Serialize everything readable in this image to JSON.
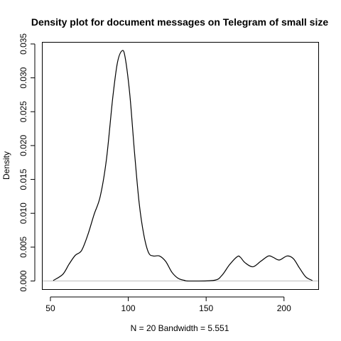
{
  "chart_data": {
    "type": "line",
    "title": "Density plot for document messages on Telegram of small size",
    "xlabel": "N = 20   Bandwidth = 5.551",
    "ylabel": "Density",
    "xlim": [
      45,
      222
    ],
    "ylim": [
      -0.0012,
      0.0352
    ],
    "x_ticks": [
      50,
      100,
      150,
      200
    ],
    "x_tick_labels": [
      "50",
      "100",
      "150",
      "200"
    ],
    "y_ticks": [
      0.0,
      0.005,
      0.01,
      0.015,
      0.02,
      0.025,
      0.03,
      0.035
    ],
    "y_tick_labels": [
      "0.000",
      "0.005",
      "0.010",
      "0.015",
      "0.020",
      "0.025",
      "0.030",
      "0.035"
    ],
    "grid": false,
    "baseline": {
      "y": 0,
      "color": "#bebebe"
    },
    "line_color": "#000000",
    "series": [
      {
        "x": [
          52,
          58,
          62,
          66,
          70,
          74,
          78,
          82,
          86,
          90,
          93,
          96,
          98,
          101,
          104,
          107,
          110,
          113,
          116,
          120,
          124,
          128,
          132,
          136,
          139,
          155,
          160,
          165,
          170,
          172,
          175,
          180,
          185,
          190,
          193,
          197,
          202,
          206,
          210,
          214,
          218
        ],
        "y": [
          0.0001,
          0.001,
          0.0025,
          0.0038,
          0.0045,
          0.0068,
          0.0098,
          0.0125,
          0.018,
          0.027,
          0.0322,
          0.034,
          0.033,
          0.0275,
          0.019,
          0.0115,
          0.0068,
          0.0042,
          0.0037,
          0.0037,
          0.0029,
          0.0013,
          0.0004,
          0.0001,
          0.0,
          0.0001,
          0.0008,
          0.0024,
          0.0036,
          0.0035,
          0.0027,
          0.0021,
          0.0029,
          0.0037,
          0.0035,
          0.0031,
          0.0037,
          0.0033,
          0.0019,
          0.0006,
          0.0001
        ]
      }
    ]
  }
}
